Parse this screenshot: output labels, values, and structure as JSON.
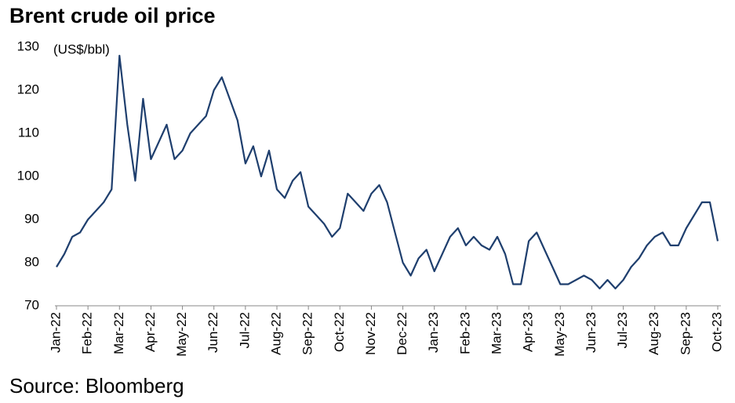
{
  "chart_data": {
    "type": "line",
    "title": "Brent crude oil price",
    "y_label": "(US$/bbl)",
    "source": "Source: Bloomberg",
    "categories": [
      "Jan-22",
      null,
      null,
      null,
      "Feb-22",
      null,
      null,
      null,
      "Mar-22",
      null,
      null,
      null,
      "Apr-22",
      null,
      null,
      null,
      "May-22",
      null,
      null,
      null,
      "Jun-22",
      null,
      null,
      null,
      "Jul-22",
      null,
      null,
      null,
      "Aug-22",
      null,
      null,
      null,
      "Sep-22",
      null,
      null,
      null,
      "Oct-22",
      null,
      null,
      null,
      "Nov-22",
      null,
      null,
      null,
      "Dec-22",
      null,
      null,
      null,
      "Jan-23",
      null,
      null,
      null,
      "Feb-23",
      null,
      null,
      null,
      "Mar-23",
      null,
      null,
      null,
      "Apr-23",
      null,
      null,
      null,
      "May-23",
      null,
      null,
      null,
      "Jun-23",
      null,
      null,
      null,
      "Jul-23",
      null,
      null,
      null,
      "Aug-23",
      null,
      null,
      null,
      "Sep-23",
      null,
      null,
      null,
      "Oct-23"
    ],
    "series": [
      {
        "name": "Brent",
        "color": "#1f3f6e",
        "values": [
          79,
          82,
          86,
          87,
          90,
          92,
          94,
          97,
          128,
          112,
          99,
          118,
          104,
          108,
          112,
          104,
          106,
          110,
          112,
          114,
          120,
          123,
          118,
          113,
          103,
          107,
          100,
          106,
          97,
          95,
          99,
          101,
          93,
          91,
          89,
          86,
          88,
          96,
          94,
          92,
          96,
          98,
          94,
          87,
          80,
          77,
          81,
          83,
          78,
          82,
          86,
          88,
          84,
          86,
          84,
          83,
          86,
          82,
          75,
          75,
          85,
          87,
          83,
          79,
          75,
          75,
          76,
          77,
          76,
          74,
          76,
          74,
          76,
          79,
          81,
          84,
          86,
          87,
          84,
          84,
          88,
          91,
          94,
          94,
          85
        ]
      }
    ],
    "ylim": [
      70,
      130
    ],
    "yticks": [
      70,
      80,
      90,
      100,
      110,
      120,
      130
    ],
    "grid": false
  }
}
